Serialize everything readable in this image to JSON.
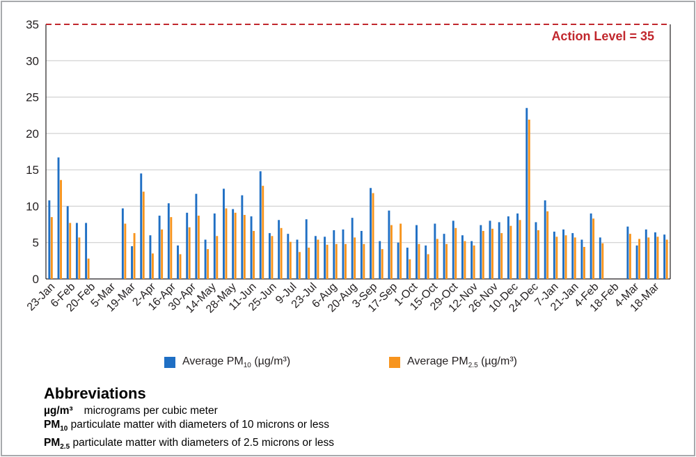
{
  "chart_data": {
    "type": "bar",
    "ylim": [
      0,
      35
    ],
    "yticks": [
      0,
      5,
      10,
      15,
      20,
      25,
      30,
      35
    ],
    "xtick_labels": [
      "23-Jan",
      "6-Feb",
      "20-Feb",
      "5-Mar",
      "19-Mar",
      "2-Apr",
      "16-Apr",
      "30-Apr",
      "14-May",
      "28-May",
      "11-Jun",
      "25-Jun",
      "9-Jul",
      "23-Jul",
      "6-Aug",
      "20-Aug",
      "3-Sep",
      "17-Sep",
      "1-Oct",
      "15-Oct",
      "29-Oct",
      "12-Nov",
      "26-Nov",
      "10-Dec",
      "24-Dec",
      "7-Jan",
      "21-Jan",
      "4-Feb",
      "18-Feb",
      "4-Mar",
      "18-Mar"
    ],
    "action_level": {
      "value": 35,
      "label": "Action Level = 35",
      "color": "#c1272d"
    },
    "series": [
      {
        "name": "Average PM10 (µg/m³)",
        "color": "#1f6fc4",
        "values": [
          10.8,
          16.7,
          10.0,
          7.7,
          7.7,
          null,
          null,
          null,
          9.7,
          4.5,
          14.5,
          6.0,
          8.7,
          10.4,
          4.6,
          9.1,
          11.7,
          5.4,
          9.0,
          12.4,
          9.6,
          11.5,
          8.6,
          14.8,
          6.3,
          8.1,
          6.2,
          5.4,
          8.2,
          5.9,
          5.8,
          6.7,
          6.8,
          8.4,
          6.6,
          12.5,
          5.2,
          9.4,
          5.0,
          4.3,
          7.4,
          4.6,
          7.6,
          6.2,
          8.0,
          6.0,
          5.2,
          7.4,
          8.0,
          7.8,
          8.6,
          9.0,
          23.5,
          7.8,
          10.8,
          6.5,
          6.8,
          6.3,
          5.4,
          9.0,
          5.7,
          null,
          null,
          7.2,
          4.6,
          6.8,
          6.4,
          6.1
        ]
      },
      {
        "name": "Average PM2.5 (µg/m³)",
        "color": "#f7941d",
        "values": [
          8.5,
          13.6,
          7.7,
          5.7,
          2.8,
          null,
          null,
          null,
          7.6,
          6.3,
          12.0,
          3.5,
          6.8,
          8.5,
          3.4,
          7.1,
          8.7,
          4.1,
          5.9,
          9.7,
          9.1,
          8.8,
          6.6,
          12.8,
          5.9,
          7.0,
          5.1,
          3.7,
          4.3,
          5.4,
          4.7,
          4.8,
          4.8,
          5.7,
          4.8,
          11.8,
          4.1,
          7.4,
          7.6,
          2.7,
          4.8,
          3.4,
          5.5,
          4.8,
          7.0,
          5.2,
          4.6,
          6.6,
          6.9,
          6.3,
          7.3,
          8.1,
          21.9,
          6.7,
          9.3,
          5.8,
          6.0,
          5.7,
          4.4,
          8.3,
          4.9,
          null,
          null,
          6.2,
          5.5,
          5.7,
          5.8,
          5.4
        ]
      }
    ]
  },
  "legend": {
    "pm10_text": "Average PM",
    "pm10_sub": "10",
    "pm10_unit": " (µg/m³)",
    "pm25_text": "Average PM",
    "pm25_sub": "2.5",
    "pm25_unit": " (µg/m³)"
  },
  "abbreviations": {
    "title": "Abbreviations",
    "row1_term": "µg/m³",
    "row1_desc": "micrograms per cubic meter",
    "row2_term": "PM",
    "row2_sub": "10",
    "row2_desc": " particulate matter with diameters of 10 microns or less",
    "row3_term": "PM",
    "row3_sub": "2.5",
    "row3_desc": " particulate matter with diameters of 2.5 microns or less"
  }
}
